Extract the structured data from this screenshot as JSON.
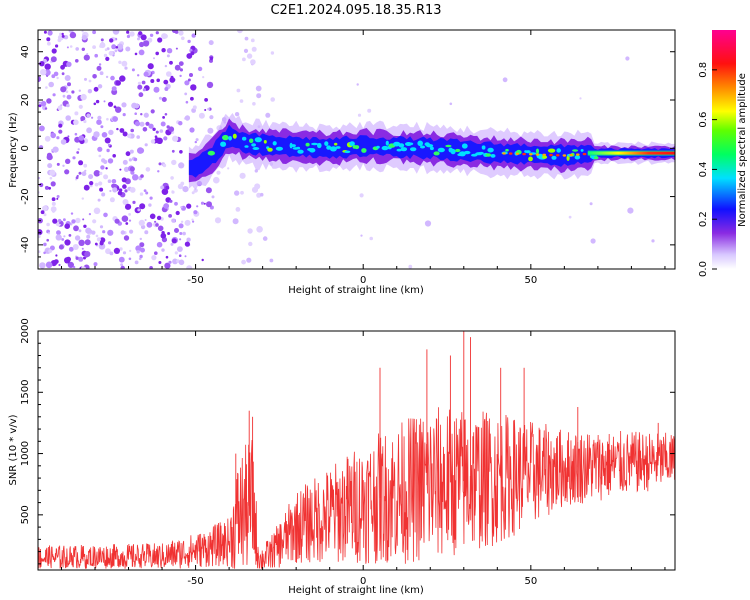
{
  "title": "C2E1.2024.095.18.35.R13",
  "chart_data": [
    {
      "type": "heatmap",
      "name": "spectrogram",
      "xlabel": "Height of straight line (km)",
      "ylabel": "Frequency (Hz)",
      "xlim": [
        -97,
        93
      ],
      "ylim": [
        -50,
        49
      ],
      "xticks": [
        -50,
        0,
        50
      ],
      "yticks": [
        -40,
        -20,
        0,
        20,
        40
      ],
      "colorbar": {
        "label": "Normalized spectral amplitude",
        "range": [
          0,
          0.96
        ],
        "ticks": [
          0.0,
          0.2,
          0.4,
          0.6,
          0.8
        ]
      },
      "ridge": [
        {
          "x": -50,
          "y": -8
        },
        {
          "x": -45,
          "y": -3
        },
        {
          "x": -40,
          "y": 5
        },
        {
          "x": -35,
          "y": 2
        },
        {
          "x": -25,
          "y": 1
        },
        {
          "x": -10,
          "y": 0
        },
        {
          "x": 0,
          "y": 1
        },
        {
          "x": 20,
          "y": 0
        },
        {
          "x": 40,
          "y": -2
        },
        {
          "x": 60,
          "y": -3
        },
        {
          "x": 70,
          "y": -2
        },
        {
          "x": 93,
          "y": -2
        }
      ]
    },
    {
      "type": "line",
      "name": "snr",
      "xlabel": "Height of straight line (km)",
      "ylabel": "SNR (10 * v/v)",
      "xlim": [
        -97,
        93
      ],
      "ylim": [
        50,
        2000
      ],
      "xticks": [
        -50,
        0,
        50
      ],
      "yticks": [
        500,
        1000,
        1500,
        2000
      ],
      "color": "#f03232",
      "envelope": [
        {
          "x": -97,
          "mean": 150,
          "amp": 100
        },
        {
          "x": -60,
          "mean": 160,
          "amp": 110
        },
        {
          "x": -48,
          "mean": 220,
          "amp": 150
        },
        {
          "x": -40,
          "mean": 280,
          "amp": 200
        },
        {
          "x": -37,
          "mean": 500,
          "amp": 500
        },
        {
          "x": -33,
          "mean": 600,
          "amp": 550
        },
        {
          "x": -31,
          "mean": 120,
          "amp": 100
        },
        {
          "x": -27,
          "mean": 200,
          "amp": 150
        },
        {
          "x": -20,
          "mean": 400,
          "amp": 300
        },
        {
          "x": 0,
          "mean": 600,
          "amp": 500
        },
        {
          "x": 20,
          "mean": 750,
          "amp": 650
        },
        {
          "x": 40,
          "mean": 800,
          "amp": 550
        },
        {
          "x": 60,
          "mean": 880,
          "amp": 320
        },
        {
          "x": 93,
          "mean": 950,
          "amp": 220
        }
      ],
      "spikes": [
        {
          "x": -38,
          "y": 1000
        },
        {
          "x": -34,
          "y": 1350
        },
        {
          "x": -33,
          "y": 1300
        },
        {
          "x": 5,
          "y": 1700
        },
        {
          "x": 19,
          "y": 1850
        },
        {
          "x": 26,
          "y": 1800
        },
        {
          "x": 30,
          "y": 2000
        },
        {
          "x": 32,
          "y": 1950
        },
        {
          "x": 41,
          "y": 1700
        },
        {
          "x": 48,
          "y": 1700
        },
        {
          "x": 64,
          "y": 1380
        },
        {
          "x": 88,
          "y": 1250
        }
      ]
    }
  ]
}
